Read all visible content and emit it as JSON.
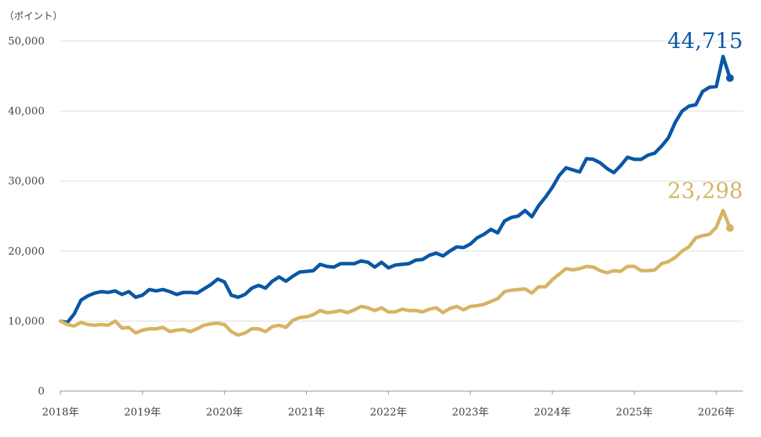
{
  "chart_data": {
    "type": "line",
    "unit_label": "（ポイント）",
    "ylim": [
      0,
      50000
    ],
    "y_ticks": [
      0,
      10000,
      20000,
      30000,
      40000,
      50000
    ],
    "y_tick_labels": [
      "0",
      "10,000",
      "20,000",
      "30,000",
      "40,000",
      "50,000"
    ],
    "x_range": [
      "2018-01",
      "2026-04"
    ],
    "x_ticks": [
      "2018-01",
      "2019-01",
      "2020-01",
      "2021-01",
      "2022-01",
      "2023-01",
      "2024-01",
      "2025-01",
      "2026-01"
    ],
    "x_tick_labels": [
      "2018年",
      "2019年",
      "2020年",
      "2021年",
      "2022年",
      "2023年",
      "2024年",
      "2025年",
      "2026年"
    ],
    "grid": true,
    "series": [
      {
        "color": "#0b57a4",
        "end_label": "44,715",
        "points": [
          [
            "2018-01",
            10000
          ],
          [
            "2018-02",
            9800
          ],
          [
            "2018-03",
            11000
          ],
          [
            "2018-04",
            13000
          ],
          [
            "2018-05",
            13600
          ],
          [
            "2018-06",
            14000
          ],
          [
            "2018-07",
            14200
          ],
          [
            "2018-08",
            14100
          ],
          [
            "2018-09",
            14300
          ],
          [
            "2018-10",
            13800
          ],
          [
            "2018-11",
            14200
          ],
          [
            "2018-12",
            13400
          ],
          [
            "2019-01",
            13700
          ],
          [
            "2019-02",
            14500
          ],
          [
            "2019-03",
            14300
          ],
          [
            "2019-04",
            14500
          ],
          [
            "2019-05",
            14200
          ],
          [
            "2019-06",
            13800
          ],
          [
            "2019-07",
            14100
          ],
          [
            "2019-08",
            14100
          ],
          [
            "2019-09",
            14000
          ],
          [
            "2019-10",
            14600
          ],
          [
            "2019-11",
            15200
          ],
          [
            "2019-12",
            16000
          ],
          [
            "2020-01",
            15600
          ],
          [
            "2020-02",
            13700
          ],
          [
            "2020-03",
            13400
          ],
          [
            "2020-04",
            13800
          ],
          [
            "2020-05",
            14700
          ],
          [
            "2020-06",
            15100
          ],
          [
            "2020-07",
            14700
          ],
          [
            "2020-08",
            15700
          ],
          [
            "2020-09",
            16300
          ],
          [
            "2020-10",
            15700
          ],
          [
            "2020-11",
            16400
          ],
          [
            "2020-12",
            17000
          ],
          [
            "2021-01",
            17100
          ],
          [
            "2021-02",
            17200
          ],
          [
            "2021-03",
            18100
          ],
          [
            "2021-04",
            17800
          ],
          [
            "2021-05",
            17700
          ],
          [
            "2021-06",
            18200
          ],
          [
            "2021-07",
            18200
          ],
          [
            "2021-08",
            18200
          ],
          [
            "2021-09",
            18600
          ],
          [
            "2021-10",
            18400
          ],
          [
            "2021-11",
            17700
          ],
          [
            "2021-12",
            18400
          ],
          [
            "2022-01",
            17600
          ],
          [
            "2022-02",
            18000
          ],
          [
            "2022-03",
            18100
          ],
          [
            "2022-04",
            18200
          ],
          [
            "2022-05",
            18700
          ],
          [
            "2022-06",
            18800
          ],
          [
            "2022-07",
            19400
          ],
          [
            "2022-08",
            19700
          ],
          [
            "2022-09",
            19300
          ],
          [
            "2022-10",
            20000
          ],
          [
            "2022-11",
            20600
          ],
          [
            "2022-12",
            20500
          ],
          [
            "2023-01",
            21000
          ],
          [
            "2023-02",
            21900
          ],
          [
            "2023-03",
            22400
          ],
          [
            "2023-04",
            23100
          ],
          [
            "2023-05",
            22600
          ],
          [
            "2023-06",
            24300
          ],
          [
            "2023-07",
            24800
          ],
          [
            "2023-08",
            25000
          ],
          [
            "2023-09",
            25800
          ],
          [
            "2023-10",
            24900
          ],
          [
            "2023-11",
            26500
          ],
          [
            "2023-12",
            27700
          ],
          [
            "2024-01",
            29100
          ],
          [
            "2024-02",
            30800
          ],
          [
            "2024-03",
            31900
          ],
          [
            "2024-04",
            31600
          ],
          [
            "2024-05",
            31300
          ],
          [
            "2024-06",
            33200
          ],
          [
            "2024-07",
            33100
          ],
          [
            "2024-08",
            32600
          ],
          [
            "2024-09",
            31800
          ],
          [
            "2024-10",
            31200
          ],
          [
            "2024-11",
            32200
          ],
          [
            "2024-12",
            33400
          ],
          [
            "2025-01",
            33100
          ],
          [
            "2025-02",
            33100
          ],
          [
            "2025-03",
            33700
          ],
          [
            "2025-04",
            34000
          ],
          [
            "2025-05",
            35000
          ],
          [
            "2025-06",
            36200
          ],
          [
            "2025-07",
            38400
          ],
          [
            "2025-08",
            40000
          ],
          [
            "2025-09",
            40700
          ],
          [
            "2025-10",
            40900
          ],
          [
            "2025-11",
            42800
          ],
          [
            "2025-12",
            43400
          ],
          [
            "2026-01",
            43500
          ],
          [
            "2026-02",
            47800
          ],
          [
            "2026-03",
            44715
          ]
        ]
      },
      {
        "color": "#d6b464",
        "end_label": "23,298",
        "points": [
          [
            "2018-01",
            10000
          ],
          [
            "2018-02",
            9500
          ],
          [
            "2018-03",
            9300
          ],
          [
            "2018-04",
            9800
          ],
          [
            "2018-05",
            9500
          ],
          [
            "2018-06",
            9400
          ],
          [
            "2018-07",
            9500
          ],
          [
            "2018-08",
            9400
          ],
          [
            "2018-09",
            10000
          ],
          [
            "2018-10",
            9000
          ],
          [
            "2018-11",
            9100
          ],
          [
            "2018-12",
            8300
          ],
          [
            "2019-01",
            8700
          ],
          [
            "2019-02",
            8900
          ],
          [
            "2019-03",
            8900
          ],
          [
            "2019-04",
            9100
          ],
          [
            "2019-05",
            8500
          ],
          [
            "2019-06",
            8700
          ],
          [
            "2019-07",
            8800
          ],
          [
            "2019-08",
            8500
          ],
          [
            "2019-09",
            8900
          ],
          [
            "2019-10",
            9400
          ],
          [
            "2019-11",
            9600
          ],
          [
            "2019-12",
            9700
          ],
          [
            "2020-01",
            9500
          ],
          [
            "2020-02",
            8500
          ],
          [
            "2020-03",
            8000
          ],
          [
            "2020-04",
            8300
          ],
          [
            "2020-05",
            8900
          ],
          [
            "2020-06",
            8900
          ],
          [
            "2020-07",
            8500
          ],
          [
            "2020-08",
            9200
          ],
          [
            "2020-09",
            9400
          ],
          [
            "2020-10",
            9100
          ],
          [
            "2020-11",
            10100
          ],
          [
            "2020-12",
            10500
          ],
          [
            "2021-01",
            10600
          ],
          [
            "2021-02",
            10900
          ],
          [
            "2021-03",
            11500
          ],
          [
            "2021-04",
            11200
          ],
          [
            "2021-05",
            11300
          ],
          [
            "2021-06",
            11500
          ],
          [
            "2021-07",
            11200
          ],
          [
            "2021-08",
            11600
          ],
          [
            "2021-09",
            12100
          ],
          [
            "2021-10",
            11900
          ],
          [
            "2021-11",
            11500
          ],
          [
            "2021-12",
            11900
          ],
          [
            "2022-01",
            11300
          ],
          [
            "2022-02",
            11300
          ],
          [
            "2022-03",
            11700
          ],
          [
            "2022-04",
            11500
          ],
          [
            "2022-05",
            11500
          ],
          [
            "2022-06",
            11300
          ],
          [
            "2022-07",
            11700
          ],
          [
            "2022-08",
            11900
          ],
          [
            "2022-09",
            11200
          ],
          [
            "2022-10",
            11800
          ],
          [
            "2022-11",
            12100
          ],
          [
            "2022-12",
            11600
          ],
          [
            "2023-01",
            12100
          ],
          [
            "2023-02",
            12200
          ],
          [
            "2023-03",
            12400
          ],
          [
            "2023-04",
            12800
          ],
          [
            "2023-05",
            13200
          ],
          [
            "2023-06",
            14200
          ],
          [
            "2023-07",
            14400
          ],
          [
            "2023-08",
            14500
          ],
          [
            "2023-09",
            14600
          ],
          [
            "2023-10",
            14000
          ],
          [
            "2023-11",
            14900
          ],
          [
            "2023-12",
            14900
          ],
          [
            "2024-01",
            15900
          ],
          [
            "2024-02",
            16700
          ],
          [
            "2024-03",
            17500
          ],
          [
            "2024-04",
            17300
          ],
          [
            "2024-05",
            17500
          ],
          [
            "2024-06",
            17800
          ],
          [
            "2024-07",
            17700
          ],
          [
            "2024-08",
            17200
          ],
          [
            "2024-09",
            16900
          ],
          [
            "2024-10",
            17200
          ],
          [
            "2024-11",
            17100
          ],
          [
            "2024-12",
            17800
          ],
          [
            "2025-01",
            17800
          ],
          [
            "2025-02",
            17200
          ],
          [
            "2025-03",
            17200
          ],
          [
            "2025-04",
            17300
          ],
          [
            "2025-05",
            18200
          ],
          [
            "2025-06",
            18500
          ],
          [
            "2025-07",
            19100
          ],
          [
            "2025-08",
            20000
          ],
          [
            "2025-09",
            20600
          ],
          [
            "2025-10",
            21900
          ],
          [
            "2025-11",
            22200
          ],
          [
            "2025-12",
            22400
          ],
          [
            "2026-01",
            23400
          ],
          [
            "2026-02",
            25800
          ],
          [
            "2026-03",
            23298
          ]
        ]
      }
    ]
  }
}
